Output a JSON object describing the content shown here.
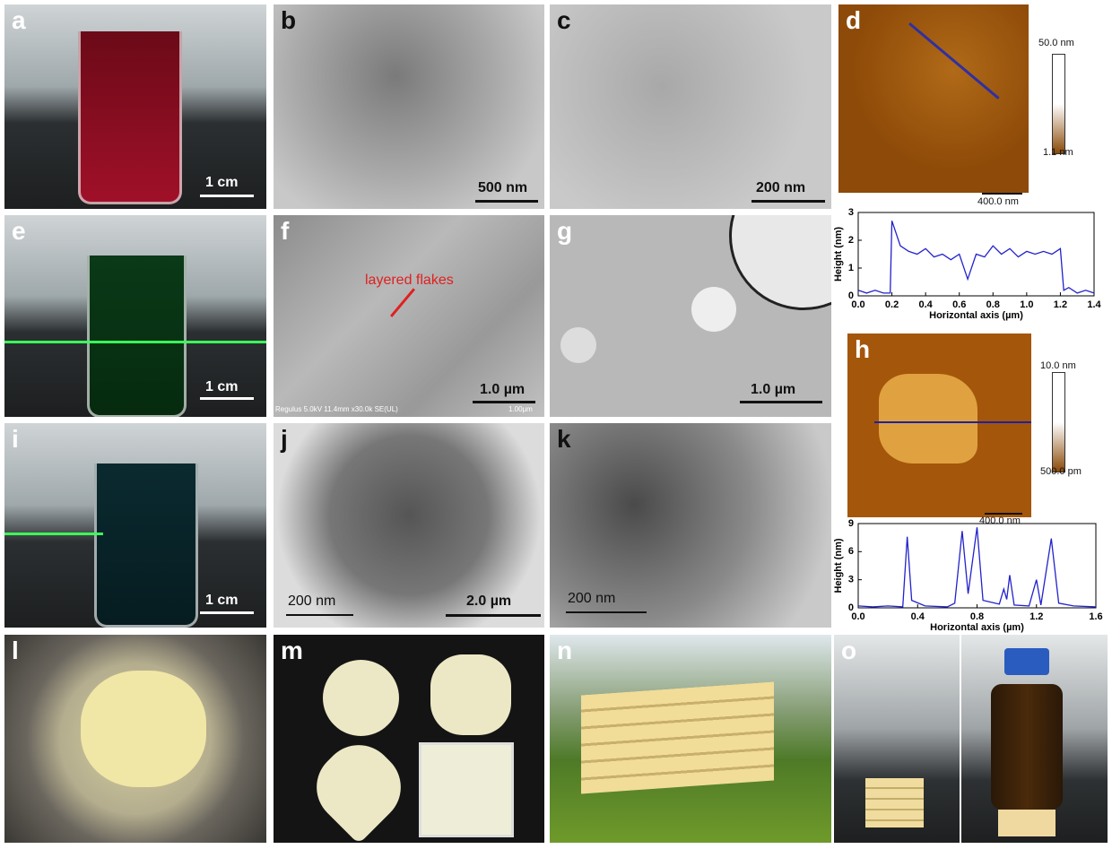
{
  "panels": [
    {
      "letter": "a",
      "texts": [
        "1 cm"
      ]
    },
    {
      "letter": "b",
      "texts": [
        "500 nm"
      ]
    },
    {
      "letter": "c",
      "texts": [
        "200 nm"
      ]
    },
    {
      "letter": "d",
      "texts": [
        "50.0 nm",
        "1.1 nm",
        "400.0 nm"
      ]
    },
    {
      "letter": "e",
      "texts": [
        "1 cm"
      ]
    },
    {
      "letter": "f",
      "texts": [
        "layered flakes",
        "1.0 µm",
        "Regulus 5.0kV 11.4mm x30.0k SE(UL)",
        "1.00µm"
      ]
    },
    {
      "letter": "g",
      "texts": [
        "1.0 µm"
      ]
    },
    {
      "letter": "h",
      "texts": [
        "10.0 nm",
        "500.0 pm",
        "400.0 nm"
      ]
    },
    {
      "letter": "i",
      "texts": [
        "1 cm"
      ]
    },
    {
      "letter": "j",
      "texts": [
        "200 nm",
        "2.0 µm"
      ]
    },
    {
      "letter": "k",
      "texts": [
        "200 nm"
      ]
    },
    {
      "letter": "l"
    },
    {
      "letter": "m"
    },
    {
      "letter": "n"
    },
    {
      "letter": "o"
    }
  ],
  "profiles": [
    {
      "type": "line",
      "y_label": "Height (nm)",
      "x_label": "Horizontal axis (µm)",
      "color": "#2222cc",
      "x": [
        0,
        0.05,
        0.1,
        0.15,
        0.19,
        0.2,
        0.25,
        0.3,
        0.35,
        0.4,
        0.45,
        0.5,
        0.55,
        0.6,
        0.65,
        0.7,
        0.75,
        0.8,
        0.85,
        0.9,
        0.95,
        1.0,
        1.05,
        1.1,
        1.15,
        1.2,
        1.22,
        1.25,
        1.3,
        1.35,
        1.4
      ],
      "values": [
        0.2,
        0.1,
        0.2,
        0.1,
        0.1,
        2.7,
        1.8,
        1.6,
        1.5,
        1.7,
        1.4,
        1.5,
        1.3,
        1.5,
        0.6,
        1.5,
        1.4,
        1.8,
        1.5,
        1.7,
        1.4,
        1.6,
        1.5,
        1.6,
        1.5,
        1.7,
        0.2,
        0.3,
        0.1,
        0.2,
        0.1
      ],
      "xlim": [
        0,
        1.4
      ],
      "ylim": [
        0,
        3
      ],
      "xticks": [
        {
          "value": 0,
          "label": "0.0"
        },
        0.2,
        0.4,
        0.6,
        0.8,
        {
          "value": 1,
          "label": "1.0"
        },
        1.2,
        1.4
      ],
      "yticks": [
        0,
        1,
        2,
        3
      ]
    },
    {
      "type": "line",
      "y_label": "Height (nm)",
      "x_label": "Horizontal axis (µm)",
      "color": "#2222cc",
      "x": [
        0,
        0.1,
        0.2,
        0.3,
        0.33,
        0.36,
        0.45,
        0.6,
        0.65,
        0.7,
        0.74,
        0.8,
        0.84,
        0.95,
        0.98,
        1.0,
        1.02,
        1.05,
        1.15,
        1.2,
        1.23,
        1.3,
        1.35,
        1.45,
        1.6
      ],
      "values": [
        0.2,
        0.1,
        0.2,
        0.1,
        7.6,
        0.8,
        0.2,
        0.1,
        0.5,
        8.2,
        1.5,
        8.6,
        0.8,
        0.4,
        2,
        0.9,
        3.5,
        0.3,
        0.2,
        3,
        0.3,
        7.4,
        0.5,
        0.2,
        0.1
      ],
      "xlim": [
        0,
        1.6
      ],
      "ylim": [
        0,
        9
      ],
      "xticks": [
        {
          "value": 0,
          "label": "0.0"
        },
        0.4,
        0.8,
        1.2,
        1.6
      ],
      "yticks": [
        0,
        3,
        6,
        9
      ]
    }
  ]
}
